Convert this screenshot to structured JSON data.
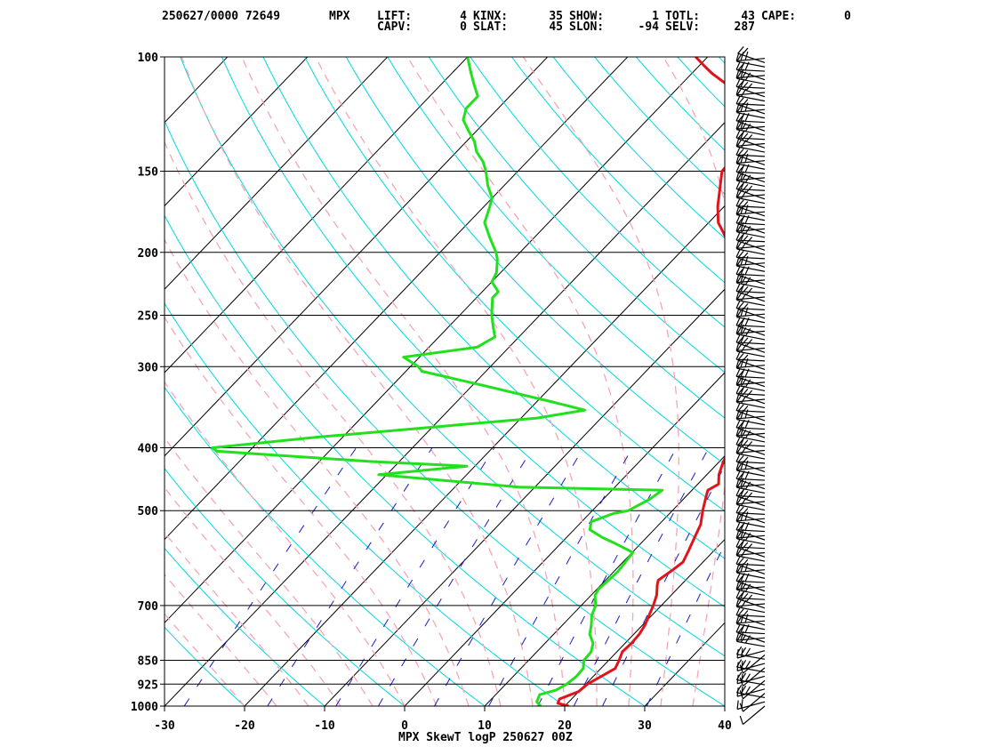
{
  "header": {
    "station_id": "250627/0000 72649",
    "site": "MPX",
    "row1": [
      {
        "label": "LIFT:",
        "value": "4"
      },
      {
        "label": "KINX:",
        "value": "35"
      },
      {
        "label": "SHOW:",
        "value": "1"
      },
      {
        "label": "TOTL:",
        "value": "43"
      },
      {
        "label": "CAPE:",
        "value": "0"
      }
    ],
    "row2": [
      {
        "label": "CAPV:",
        "value": "0"
      },
      {
        "label": "SLAT:",
        "value": "45"
      },
      {
        "label": "SLON:",
        "value": "-94"
      },
      {
        "label": "SELV:",
        "value": "287"
      }
    ]
  },
  "colors": {
    "temperature": "#e0141b",
    "dewpoint": "#22e01e",
    "isotherm_skewed": "#000000",
    "dry_adiabat": "#00d8e0",
    "moist_adiabat": "#f4a6b4",
    "mixing_ratio": "#1a1ac8",
    "frame": "#000000"
  },
  "chart_data": {
    "type": "line",
    "title": "MPX SkewT logP 250627 00Z",
    "xlabel": "",
    "ylabel": "",
    "x_ticks": [
      -30,
      -20,
      -10,
      0,
      10,
      20,
      30,
      40
    ],
    "xlim": [
      -30,
      40
    ],
    "y_scale": "log",
    "ylim": [
      1000,
      100
    ],
    "p_ticks": [
      100,
      150,
      200,
      250,
      300,
      400,
      500,
      700,
      850,
      925,
      1000
    ],
    "grid": true,
    "series": [
      {
        "key": "temperature",
        "points": [
          [
            1000,
            20.5
          ],
          [
            990,
            18.8
          ],
          [
            975,
            18.5
          ],
          [
            950,
            20
          ],
          [
            925,
            20.2
          ],
          [
            900,
            21
          ],
          [
            875,
            21.8
          ],
          [
            850,
            21.3
          ],
          [
            825,
            20.7
          ],
          [
            800,
            20.8
          ],
          [
            775,
            20.7
          ],
          [
            750,
            20.3
          ],
          [
            700,
            19
          ],
          [
            675,
            18.2
          ],
          [
            650,
            17
          ],
          [
            640,
            16.6
          ],
          [
            620,
            17.1
          ],
          [
            600,
            17.5
          ],
          [
            575,
            16.8
          ],
          [
            550,
            16
          ],
          [
            525,
            15.2
          ],
          [
            500,
            13.8
          ],
          [
            475,
            12.5
          ],
          [
            465,
            12
          ],
          [
            460,
            12.3
          ],
          [
            455,
            12.6
          ],
          [
            440,
            11.5
          ],
          [
            420,
            10.5
          ],
          [
            400,
            9.8
          ],
          [
            380,
            8.5
          ],
          [
            360,
            6.5
          ],
          [
            340,
            4.6
          ],
          [
            320,
            2.6
          ],
          [
            300,
            0.8
          ],
          [
            280,
            -1.7
          ],
          [
            260,
            -4.5
          ],
          [
            250,
            -5.9
          ],
          [
            230,
            -8.7
          ],
          [
            210,
            -12
          ],
          [
            200,
            -13.5
          ],
          [
            190,
            -16
          ],
          [
            180,
            -18.8
          ],
          [
            170,
            -20.8
          ],
          [
            160,
            -22.6
          ],
          [
            150,
            -24.5
          ],
          [
            145,
            -24.6
          ],
          [
            140,
            -24.1
          ],
          [
            135,
            -24.5
          ],
          [
            130,
            -26.2
          ],
          [
            125,
            -27.5
          ],
          [
            122,
            -28.8
          ],
          [
            118,
            -29.5
          ],
          [
            114,
            -32
          ],
          [
            110,
            -34.5
          ],
          [
            106,
            -37.5
          ],
          [
            103,
            -39.5
          ],
          [
            100,
            -41.5
          ]
        ]
      },
      {
        "key": "dewpoint",
        "points": [
          [
            1000,
            17
          ],
          [
            985,
            16
          ],
          [
            960,
            15.5
          ],
          [
            945,
            17
          ],
          [
            925,
            17.6
          ],
          [
            900,
            17.9
          ],
          [
            875,
            17.8
          ],
          [
            850,
            16.9
          ],
          [
            825,
            16.8
          ],
          [
            800,
            16
          ],
          [
            775,
            14.5
          ],
          [
            750,
            13.6
          ],
          [
            725,
            12.5
          ],
          [
            700,
            11.8
          ],
          [
            675,
            10.5
          ],
          [
            660,
            10.2
          ],
          [
            640,
            10.4
          ],
          [
            620,
            10.5
          ],
          [
            600,
            10.3
          ],
          [
            580,
            10.1
          ],
          [
            560,
            6.5
          ],
          [
            550,
            4.5
          ],
          [
            535,
            2
          ],
          [
            520,
            1.2
          ],
          [
            505,
            3
          ],
          [
            500,
            4.5
          ],
          [
            480,
            5.8
          ],
          [
            465,
            6.3
          ],
          [
            460,
            -12
          ],
          [
            440,
            -31
          ],
          [
            427,
            -21
          ],
          [
            420,
            -33.5
          ],
          [
            405,
            -54
          ],
          [
            400,
            -55
          ],
          [
            385,
            -43
          ],
          [
            360,
            -18
          ],
          [
            350,
            -13
          ],
          [
            340,
            -18
          ],
          [
            320,
            -29
          ],
          [
            305,
            -38
          ],
          [
            300,
            -39
          ],
          [
            290,
            -42
          ],
          [
            280,
            -34
          ],
          [
            270,
            -33
          ],
          [
            260,
            -34.5
          ],
          [
            250,
            -36
          ],
          [
            235,
            -38
          ],
          [
            230,
            -38
          ],
          [
            222,
            -40
          ],
          [
            215,
            -40.5
          ],
          [
            205,
            -42
          ],
          [
            200,
            -43
          ],
          [
            190,
            -45.5
          ],
          [
            180,
            -48
          ],
          [
            172,
            -49
          ],
          [
            165,
            -50
          ],
          [
            158,
            -52
          ],
          [
            150,
            -54
          ],
          [
            145,
            -55.5
          ],
          [
            140,
            -57.5
          ],
          [
            135,
            -59
          ],
          [
            130,
            -61
          ],
          [
            125,
            -63
          ],
          [
            120,
            -64
          ],
          [
            115,
            -64
          ],
          [
            110,
            -66
          ],
          [
            105,
            -68
          ],
          [
            100,
            -70
          ]
        ]
      }
    ],
    "wind_barbs": "right-hand column of wind barbs from 1000 to 100 hPa"
  }
}
